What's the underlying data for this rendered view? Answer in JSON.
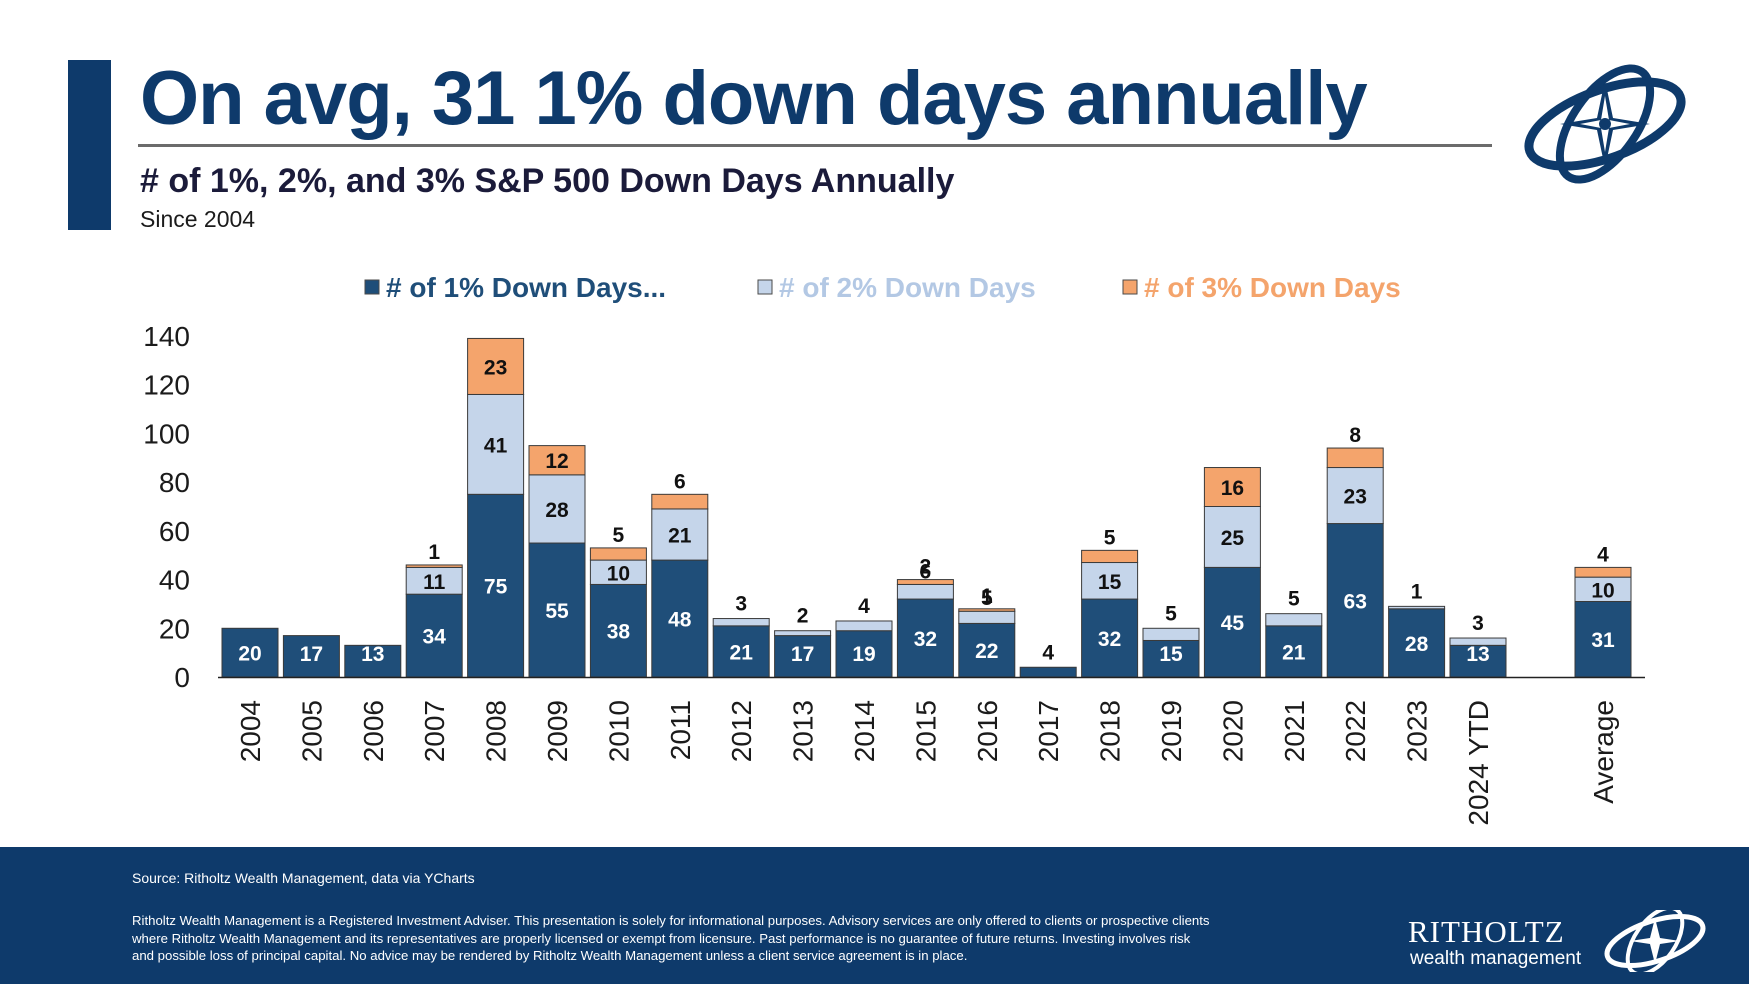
{
  "header": {
    "title": "On avg, 31 1% down days annually",
    "subtitle": "# of 1%, 2%, and 3% S&P 500 Down Days Annually",
    "since": "Since 2004"
  },
  "colors": {
    "brand": "#0e3a6b",
    "series_1pct": "#1f4e79",
    "series_2pct": "#c5d5ea",
    "series_3pct": "#f4a46c"
  },
  "chart_data": {
    "type": "bar",
    "stacked": true,
    "categories": [
      "2004",
      "2005",
      "2006",
      "2007",
      "2008",
      "2009",
      "2010",
      "2011",
      "2012",
      "2013",
      "2014",
      "2015",
      "2016",
      "2017",
      "2018",
      "2019",
      "2020",
      "2021",
      "2022",
      "2023",
      "2024 YTD",
      "Average"
    ],
    "series": [
      {
        "name": "# of 1% Down Days...",
        "color": "#1f4e79",
        "values": [
          20,
          17,
          13,
          34,
          75,
          55,
          38,
          48,
          21,
          17,
          19,
          32,
          22,
          4,
          32,
          15,
          45,
          21,
          63,
          28,
          13,
          31
        ]
      },
      {
        "name": "# of 2% Down Days",
        "color": "#c5d5ea",
        "values": [
          null,
          null,
          null,
          11,
          41,
          28,
          10,
          21,
          3,
          2,
          4,
          6,
          5,
          null,
          15,
          5,
          25,
          5,
          23,
          1,
          3,
          10
        ]
      },
      {
        "name": "# of 3% Down Days",
        "color": "#f4a46c",
        "values": [
          null,
          null,
          null,
          1,
          23,
          12,
          5,
          6,
          null,
          null,
          null,
          2,
          1,
          null,
          5,
          null,
          16,
          null,
          8,
          null,
          null,
          4
        ]
      }
    ],
    "ylim": [
      0,
      140
    ],
    "yticks": [
      0,
      20,
      40,
      60,
      80,
      100,
      120,
      140
    ],
    "legend_position": "top-center",
    "grid": false
  },
  "footer": {
    "source": "Source: Ritholtz Wealth Management, data via YCharts",
    "disclaimer": "Ritholtz Wealth Management is a Registered Investment Adviser. This presentation is solely for informational purposes. Advisory services are only offered to clients or prospective clients where Ritholtz Wealth Management and its representatives are properly licensed or exempt from licensure. Past performance is no guarantee of future returns. Investing involves risk and possible loss of principal capital. No advice may be rendered by Ritholtz Wealth Management unless a client service agreement is in place.",
    "brand_name": "RITHOLTZ",
    "brand_sub": "wealth management"
  }
}
